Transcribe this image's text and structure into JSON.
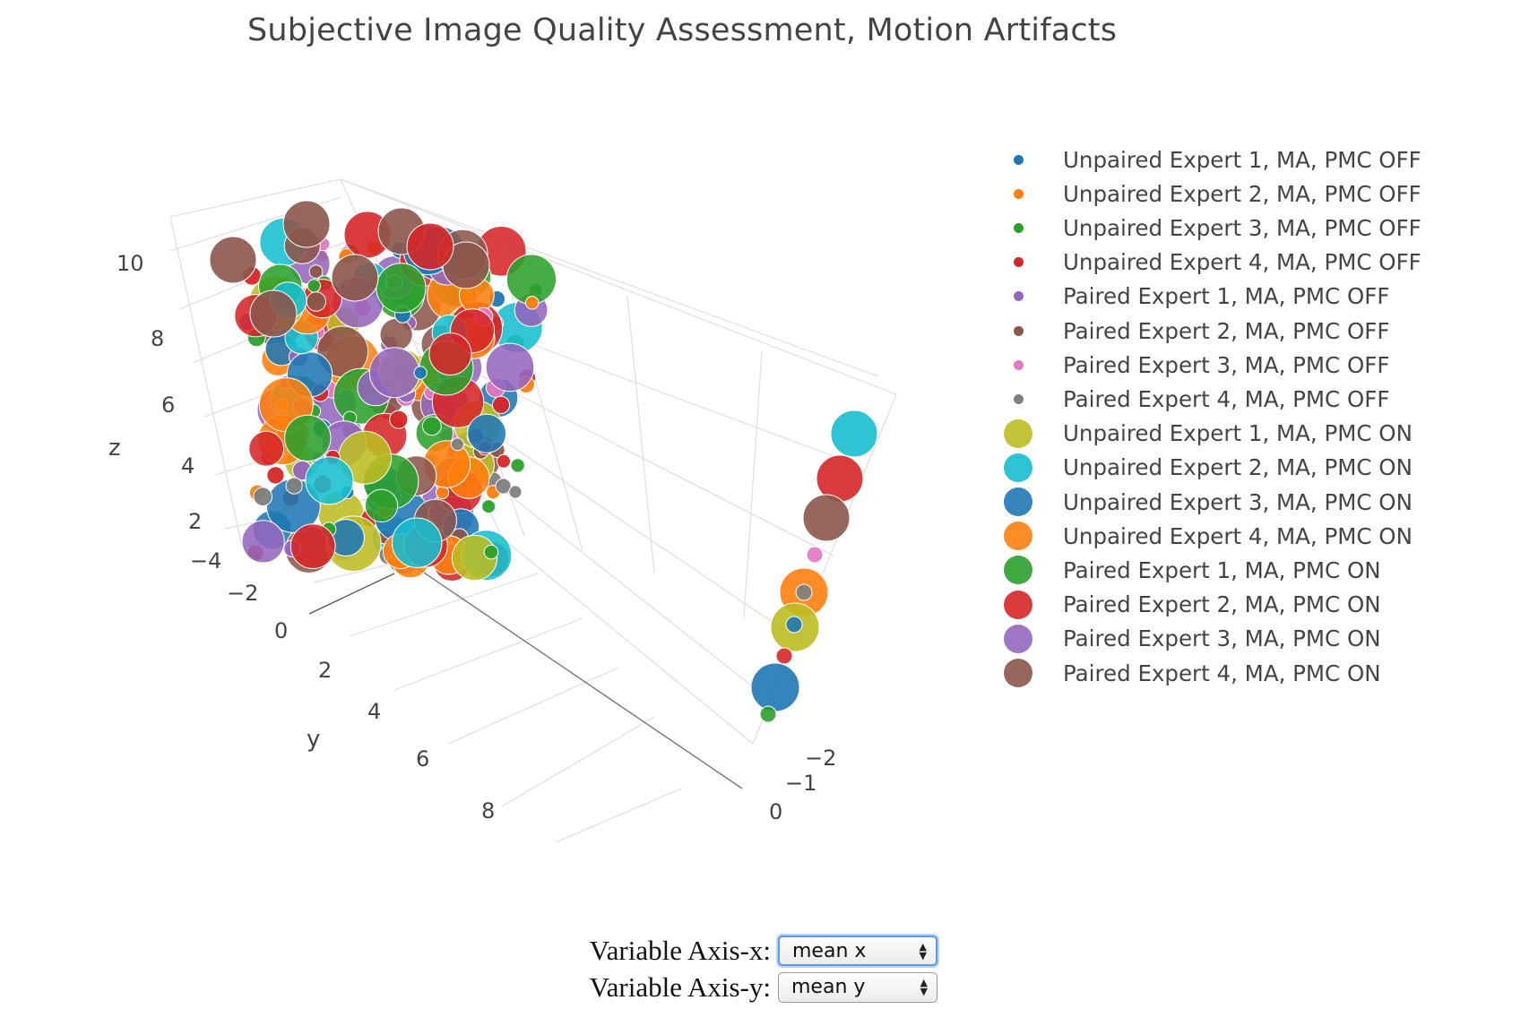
{
  "chart_data": {
    "type": "scatter",
    "subtype": "3d-bubble",
    "title": "Subjective Image Quality Assessment, Motion Artifacts",
    "axes": {
      "x": {
        "title": "",
        "ticks": [
          "−2",
          "−1",
          "0"
        ]
      },
      "y": {
        "title": "y",
        "ticks": [
          "−4",
          "−2",
          "0",
          "2",
          "4",
          "6",
          "8"
        ]
      },
      "z": {
        "title": "z",
        "ticks": [
          "2",
          "4",
          "6",
          "8",
          "10"
        ]
      }
    },
    "legend_position": "right",
    "grid": true,
    "series": [
      {
        "name": "Unpaired Expert 1, MA, PMC OFF",
        "color": "#1f77b4",
        "marker": "small"
      },
      {
        "name": "Unpaired Expert 2, MA, PMC OFF",
        "color": "#ff7f0e",
        "marker": "small"
      },
      {
        "name": "Unpaired Expert 3, MA, PMC OFF",
        "color": "#2ca02c",
        "marker": "small"
      },
      {
        "name": "Unpaired Expert 4, MA, PMC OFF",
        "color": "#d62728",
        "marker": "small"
      },
      {
        "name": "Paired Expert 1, MA, PMC OFF",
        "color": "#9467bd",
        "marker": "small"
      },
      {
        "name": "Paired Expert 2, MA, PMC OFF",
        "color": "#8c564b",
        "marker": "small"
      },
      {
        "name": "Paired Expert 3, MA, PMC OFF",
        "color": "#e377c2",
        "marker": "small"
      },
      {
        "name": "Paired Expert 4, MA, PMC OFF",
        "color": "#7f7f7f",
        "marker": "small"
      },
      {
        "name": "Unpaired Expert 1, MA, PMC ON",
        "color": "#bcbd22",
        "marker": "large"
      },
      {
        "name": "Unpaired Expert 2, MA, PMC ON",
        "color": "#17becf",
        "marker": "large"
      },
      {
        "name": "Unpaired Expert 3, MA, PMC ON",
        "color": "#1f77b4",
        "marker": "large"
      },
      {
        "name": "Unpaired Expert 4, MA, PMC ON",
        "color": "#ff7f0e",
        "marker": "large"
      },
      {
        "name": "Paired Expert 1, MA, PMC ON",
        "color": "#2ca02c",
        "marker": "large"
      },
      {
        "name": "Paired Expert 2, MA, PMC ON",
        "color": "#d62728",
        "marker": "large"
      },
      {
        "name": "Paired Expert 3, MA, PMC ON",
        "color": "#9467bd",
        "marker": "large"
      },
      {
        "name": "Paired Expert 4, MA, PMC ON",
        "color": "#8c564b",
        "marker": "large"
      }
    ]
  },
  "controls": {
    "x_label": "Variable Axis-x:",
    "x_value": "mean x",
    "y_label": "Variable Axis-y:",
    "y_value": "mean y"
  }
}
